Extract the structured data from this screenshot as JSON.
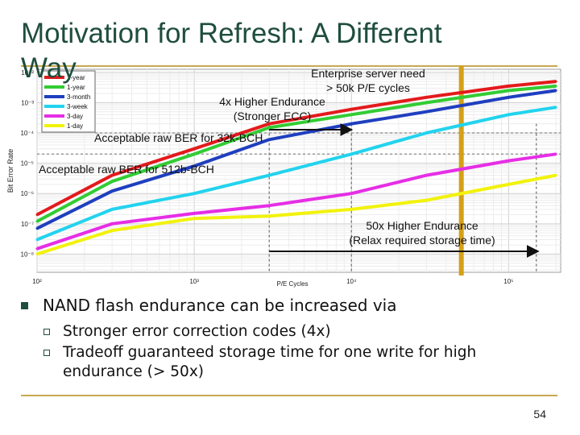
{
  "slide": {
    "title_line1": "Motivation for Refresh: A Different",
    "title_line2": "Way",
    "page_number": "54"
  },
  "annotations": {
    "enterprise_line1": "Enterprise server need",
    "enterprise_line2": "> 50k P/E cycles",
    "higher4x_line1": "4x Higher Endurance",
    "higher4x_line2": "(Stronger ECC)",
    "ber32k": "Acceptable raw BER for 32k-BCH",
    "ber512b": "Acceptable raw BER for 512b-BCH",
    "higher50x_line1": "50x Higher Endurance",
    "higher50x_line2": "(Relax required storage time)"
  },
  "bullets": {
    "main": "NAND flash endurance can be increased via",
    "sub1": "Stronger error correction codes (4x)",
    "sub2_line1": "Tradeoff  guaranteed storage time for one write for high",
    "sub2_line2": "endurance (> 50x)"
  },
  "colors": {
    "title": "#1f4e3d",
    "rule": "#c8a951",
    "marker": "#1f4e3d"
  },
  "chart_data": {
    "type": "line",
    "xlabel": "P/E Cycles",
    "ylabel": "Bit Error Rate",
    "x_scale": "log",
    "y_scale": "log",
    "x_ticks": [
      "10²",
      "10³",
      "10⁴",
      "10⁵"
    ],
    "y_ticks": [
      "10⁻²",
      "10⁻³",
      "10⁻⁴",
      "10⁻⁵",
      "10⁻⁶",
      "10⁻⁷",
      "10⁻⁸"
    ],
    "legend_position": "top-left",
    "series": [
      {
        "name": "1-year",
        "color": "#e31a1c",
        "x": [
          100,
          300,
          1000,
          3000,
          10000,
          30000,
          100000,
          200000
        ],
        "y": [
          2e-07,
          4e-06,
          3e-05,
          0.0002,
          0.0006,
          0.0015,
          0.0035,
          0.005
        ]
      },
      {
        "name": "1-year",
        "color": "#33cc33",
        "x": [
          100,
          300,
          1000,
          3000,
          10000,
          30000,
          100000,
          200000
        ],
        "y": [
          1.2e-07,
          2.5e-06,
          2e-05,
          0.00015,
          0.0004,
          0.001,
          0.0025,
          0.0035
        ]
      },
      {
        "name": "3-month",
        "color": "#1f3fbf",
        "x": [
          100,
          300,
          1000,
          3000,
          10000,
          30000,
          100000,
          200000
        ],
        "y": [
          7e-08,
          1.2e-06,
          8e-06,
          6e-05,
          0.0002,
          0.0005,
          0.0015,
          0.0025
        ]
      },
      {
        "name": "3-week",
        "color": "#22d3ee",
        "x": [
          100,
          300,
          1000,
          3000,
          10000,
          30000,
          100000,
          200000
        ],
        "y": [
          3e-08,
          3e-07,
          1e-06,
          4e-06,
          2e-05,
          0.0001,
          0.0004,
          0.0007
        ]
      },
      {
        "name": "3-day",
        "color": "#e62ee6",
        "x": [
          100,
          300,
          1000,
          3000,
          10000,
          30000,
          100000,
          200000
        ],
        "y": [
          1.5e-08,
          1e-07,
          2.2e-07,
          4e-07,
          1e-06,
          4e-06,
          1.2e-05,
          2e-05
        ]
      },
      {
        "name": "1-day",
        "color": "#f2f20d",
        "x": [
          100,
          300,
          1000,
          3000,
          10000,
          30000,
          100000,
          200000
        ],
        "y": [
          1e-08,
          6e-08,
          1.5e-07,
          1.8e-07,
          3e-07,
          6e-07,
          2e-06,
          4e-06
        ]
      }
    ],
    "reference_lines": [
      {
        "name": "Acceptable raw BER for 32k-BCH",
        "y": 0.0001
      },
      {
        "name": "Acceptable raw BER for 512b-BCH",
        "y": 2e-05
      }
    ],
    "vertical_markers": [
      {
        "x": 3000,
        "style": "dashed"
      },
      {
        "x": 10000,
        "style": "dashed"
      },
      {
        "x": 50000,
        "style": "solid",
        "color": "#d4a017"
      },
      {
        "x": 150000,
        "style": "dashed"
      }
    ]
  }
}
